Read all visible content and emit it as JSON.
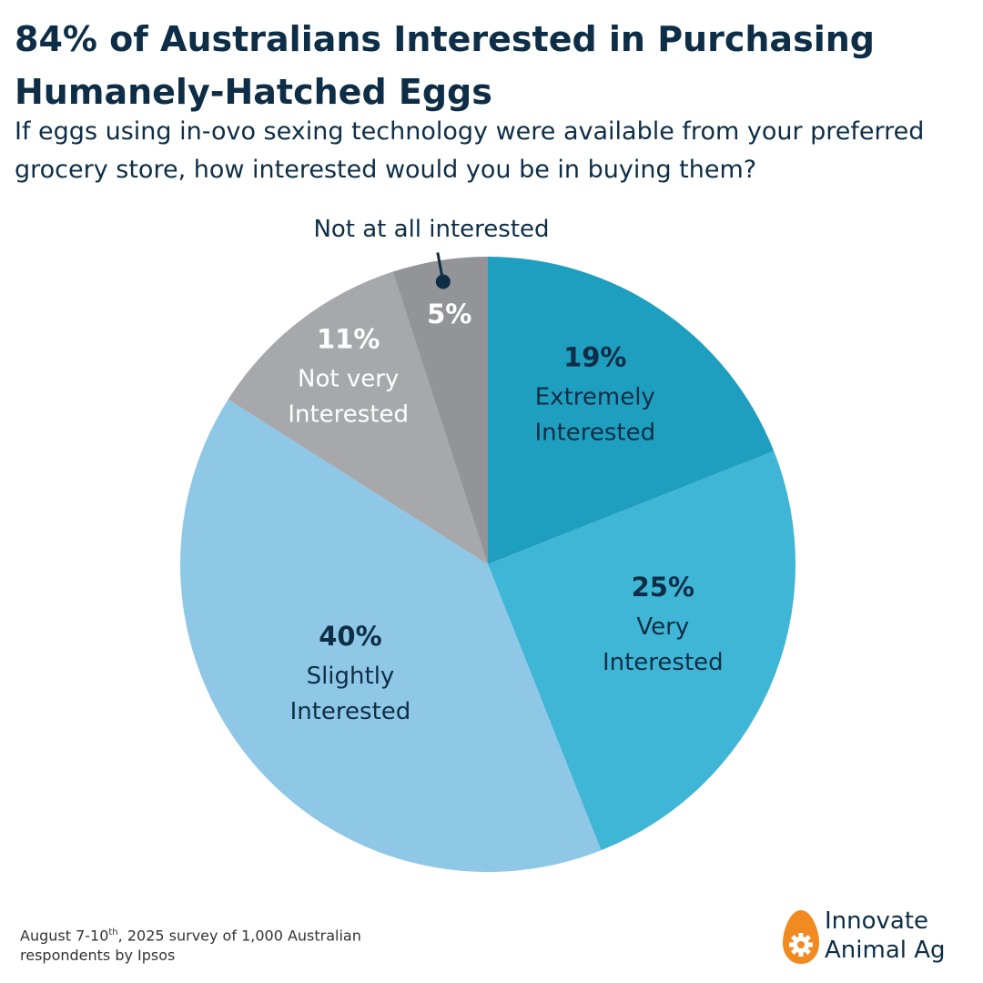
{
  "title": "84% of Australians Interested in Purchasing Humanely-Hatched Eggs",
  "subtitle": "If eggs using in-ovo sexing technology were available from your preferred grocery store, how interested would you be in buying them?",
  "footnote": {
    "prefix": "August 7-10",
    "ordinal": "th",
    "rest": ", 2025 survey of 1,000 Australian respondents by Ipsos"
  },
  "logo": {
    "line1": "Innovate",
    "line2": "Animal Ag",
    "icon": "egg-gear-icon",
    "color": "#f18a21"
  },
  "chart_data": {
    "type": "pie",
    "start": "12 o'clock",
    "direction": "clockwise",
    "slices": [
      {
        "value": 19,
        "label_value": "19%",
        "label": [
          "Extremely",
          "Interested"
        ],
        "color": "#1f9fbf",
        "text_color": "#0d2e46"
      },
      {
        "value": 25,
        "label_value": "25%",
        "label": [
          "Very",
          "Interested"
        ],
        "color": "#40b6d6",
        "text_color": "#0d2e46"
      },
      {
        "value": 40,
        "label_value": "40%",
        "label": [
          "Slightly",
          "Interested"
        ],
        "color": "#8fc8e6",
        "text_color": "#0d2e46"
      },
      {
        "value": 11,
        "label_value": "11%",
        "label": [
          "Not very",
          "Interested"
        ],
        "color": "#a6a8ab",
        "text_color": "#ffffff"
      },
      {
        "value": 5,
        "label_value": "5%",
        "label": [],
        "color": "#929497",
        "text_color": "#ffffff"
      }
    ],
    "callout": {
      "slice": 4,
      "text": "Not at all interested"
    }
  }
}
